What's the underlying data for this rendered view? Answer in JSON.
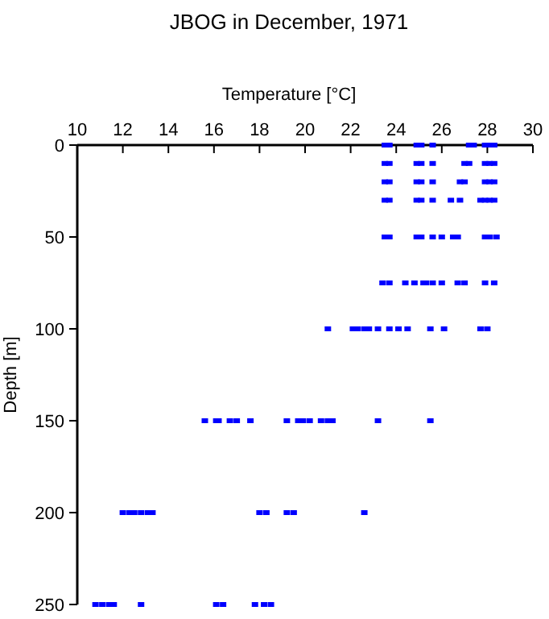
{
  "chart_data": {
    "type": "scatter",
    "title": "JBOG in December, 1971",
    "xlabel": "Temperature [°C]",
    "ylabel": "Depth [m]",
    "xlim": [
      10,
      30
    ],
    "xticks": [
      10,
      12,
      14,
      16,
      18,
      20,
      22,
      24,
      26,
      28,
      30
    ],
    "ylim": [
      250,
      0
    ],
    "yticks": [
      0,
      50,
      100,
      150,
      200,
      250
    ],
    "grid": false,
    "marker": "square",
    "series": [
      {
        "color": "#0000ff",
        "x": [
          23.5,
          23.7,
          24.9,
          25.1,
          25.6,
          27.2,
          27.4,
          27.9,
          28.1,
          28.3,
          23.5,
          23.7,
          24.9,
          25.1,
          25.6,
          27.0,
          27.2,
          27.9,
          28.1,
          28.3,
          23.5,
          23.7,
          24.9,
          25.1,
          25.6,
          26.8,
          27.0,
          27.9,
          28.1,
          28.3,
          23.5,
          23.7,
          24.9,
          25.1,
          25.6,
          26.4,
          26.8,
          27.7,
          27.9,
          28.1,
          28.3,
          23.5,
          23.7,
          24.9,
          25.1,
          25.6,
          26.0,
          26.5,
          26.7,
          27.9,
          28.1,
          28.4,
          23.4,
          23.7,
          24.4,
          24.8,
          25.2,
          25.3,
          25.6,
          26.0,
          26.7,
          27.0,
          27.9,
          28.3,
          21.0,
          22.1,
          22.3,
          22.6,
          22.8,
          23.2,
          23.7,
          24.1,
          24.5,
          25.5,
          26.1,
          27.7,
          28.0,
          15.6,
          16.1,
          16.2,
          16.7,
          17.0,
          17.6,
          19.2,
          19.7,
          19.9,
          20.2,
          20.7,
          21.0,
          21.2,
          23.2,
          25.5,
          12.0,
          12.3,
          12.5,
          12.8,
          13.1,
          13.3,
          18.0,
          18.3,
          19.2,
          19.5,
          22.6,
          10.8,
          11.1,
          11.4,
          11.6,
          12.8,
          16.1,
          16.4,
          17.8,
          18.2,
          18.5
        ],
        "values": [
          0,
          0,
          0,
          0,
          0,
          0,
          0,
          0,
          0,
          0,
          10,
          10,
          10,
          10,
          10,
          10,
          10,
          10,
          10,
          10,
          20,
          20,
          20,
          20,
          20,
          20,
          20,
          20,
          20,
          20,
          30,
          30,
          30,
          30,
          30,
          30,
          30,
          30,
          30,
          30,
          30,
          50,
          50,
          50,
          50,
          50,
          50,
          50,
          50,
          50,
          50,
          50,
          75,
          75,
          75,
          75,
          75,
          75,
          75,
          75,
          75,
          75,
          75,
          75,
          100,
          100,
          100,
          100,
          100,
          100,
          100,
          100,
          100,
          100,
          100,
          100,
          100,
          150,
          150,
          150,
          150,
          150,
          150,
          150,
          150,
          150,
          150,
          150,
          150,
          150,
          150,
          150,
          200,
          200,
          200,
          200,
          200,
          200,
          200,
          200,
          200,
          200,
          200,
          250,
          250,
          250,
          250,
          250,
          250,
          250,
          250,
          250,
          250
        ]
      }
    ]
  }
}
